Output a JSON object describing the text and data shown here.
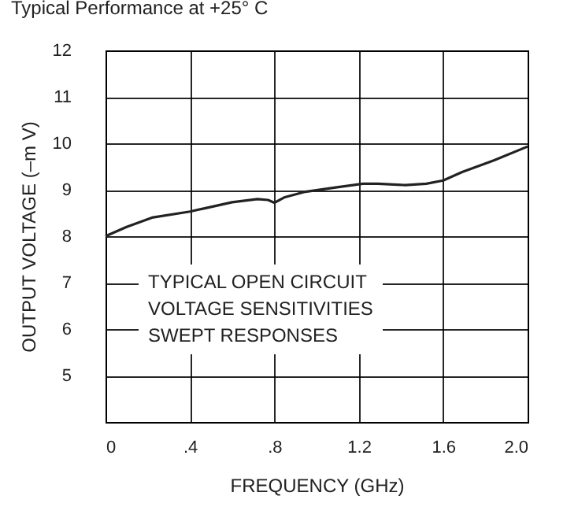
{
  "chart_data": {
    "type": "line",
    "title": "Typical Performance at +25° C",
    "xlabel": "FREQUENCY (GHz)",
    "ylabel": "OUTPUT VOLTAGE (–m V)",
    "annotations": [
      "TYPICAL OPEN CIRCUIT\nVOLTAGE SENSITIVITIES\nSWEPT RESPONSES"
    ],
    "x": [
      0,
      0.1,
      0.22,
      0.4,
      0.47,
      0.6,
      0.72,
      0.77,
      0.8,
      0.85,
      0.94,
      1.09,
      1.22,
      1.29,
      1.42,
      1.52,
      1.6,
      1.69,
      1.84,
      2.0
    ],
    "series": [
      {
        "color": "#222222",
        "values": [
          8.0,
          8.2,
          8.4,
          8.53,
          8.6,
          8.73,
          8.8,
          8.78,
          8.72,
          8.84,
          8.95,
          9.05,
          9.13,
          9.13,
          9.1,
          9.13,
          9.2,
          9.38,
          9.63,
          9.93
        ]
      }
    ],
    "xlim": [
      0,
      2.0
    ],
    "xticks": [
      0,
      {
        "value": 0.4,
        "label": ".4"
      },
      {
        "value": 0.8,
        "label": ".8"
      },
      1.2,
      1.6,
      {
        "value": 2.0,
        "label": "2.0"
      }
    ],
    "ylim": [
      4,
      12
    ],
    "yticks": [
      5,
      6,
      7,
      8,
      9,
      10,
      11,
      12
    ],
    "grid": true,
    "marker": "none",
    "line_style": "solid"
  }
}
